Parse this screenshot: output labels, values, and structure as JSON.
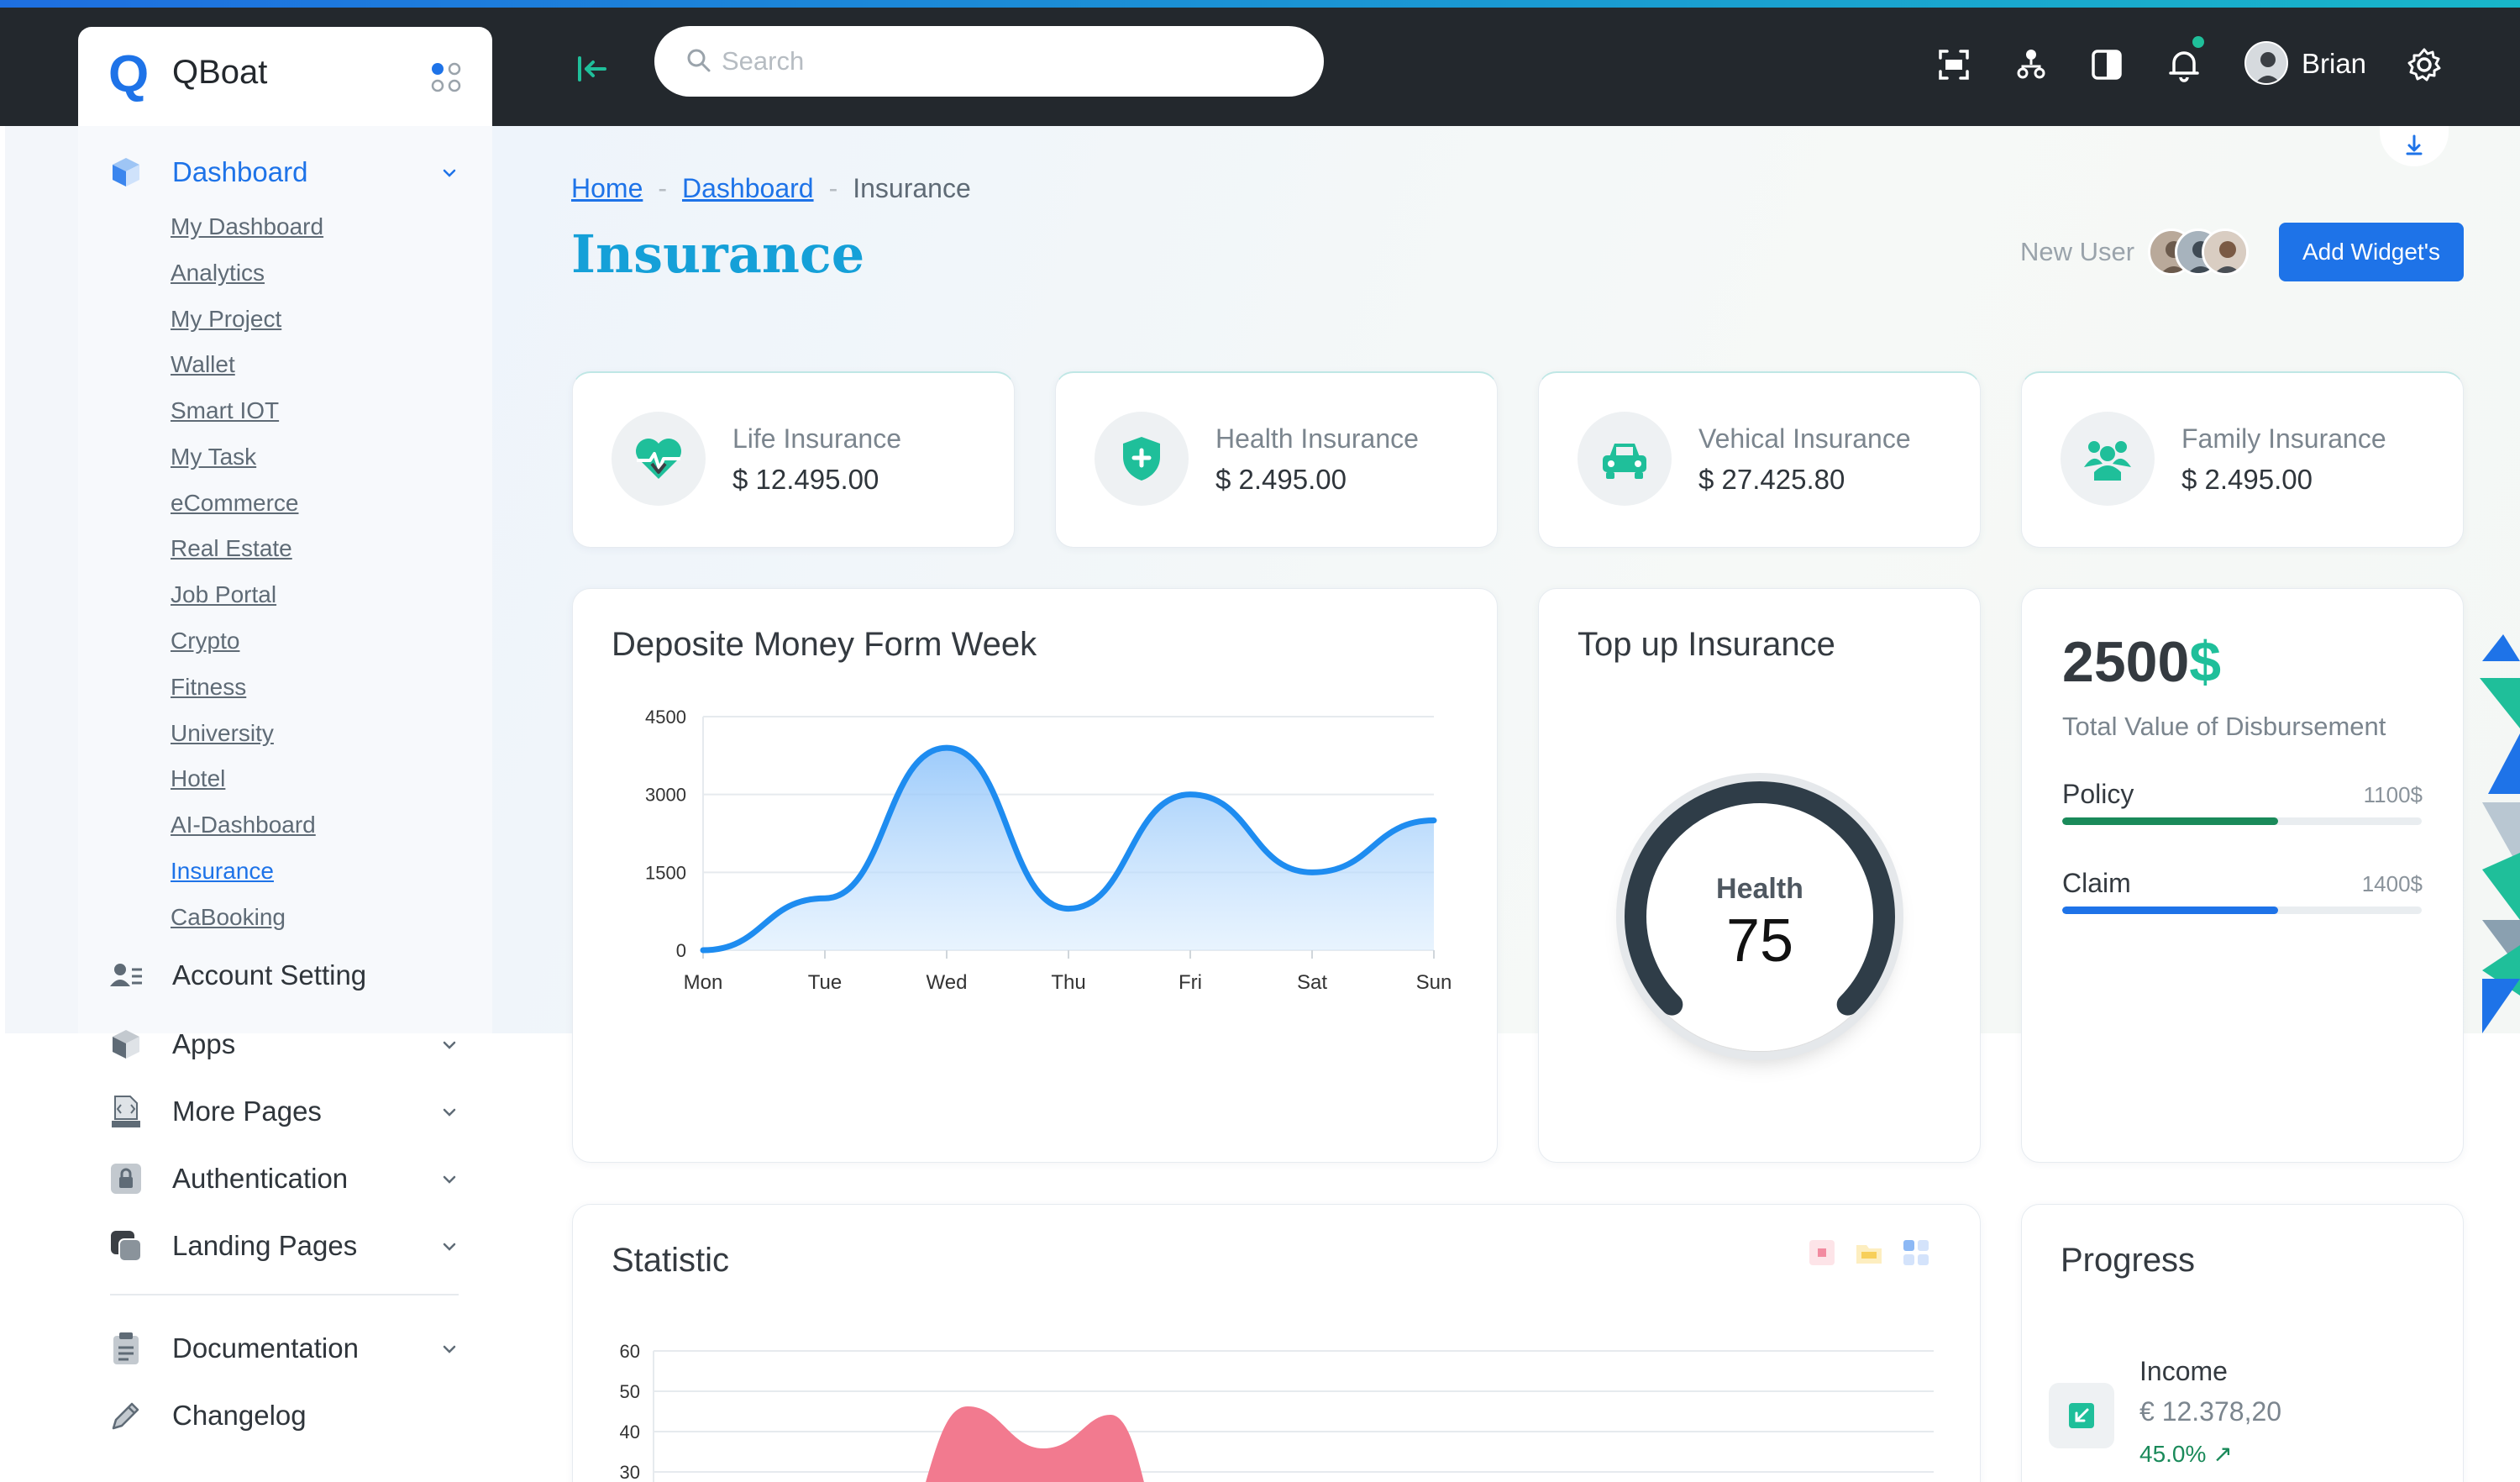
{
  "topbar": {
    "search_placeholder": "Search",
    "user_name": "Brian",
    "icons": [
      "collapse-icon",
      "fullscreen-icon",
      "sitemap-icon",
      "layout-toggle-icon",
      "bell-icon",
      "settings-icon"
    ]
  },
  "sidebar": {
    "logo": "QBoat",
    "logo_mark": "Q",
    "dashboard": {
      "label": "Dashboard",
      "items": [
        "My Dashboard",
        "Analytics",
        "My Project",
        "Wallet",
        "Smart IOT",
        "My Task",
        "eCommerce",
        "Real Estate",
        "Job Portal",
        "Crypto",
        "Fitness",
        "University",
        "Hotel",
        "AI-Dashboard",
        "Insurance",
        "CaBooking"
      ],
      "active_item": "Insurance"
    },
    "sections": [
      {
        "label": "Account Setting",
        "icon": "user-cog-icon",
        "expandable": false
      },
      {
        "label": "Apps",
        "icon": "box-icon",
        "expandable": true
      },
      {
        "label": "More Pages",
        "icon": "html-file-icon",
        "expandable": true
      },
      {
        "label": "Authentication",
        "icon": "lock-icon",
        "expandable": true
      },
      {
        "label": "Landing Pages",
        "icon": "pages-icon",
        "expandable": true
      },
      {
        "label": "Documentation",
        "icon": "clipboard-icon",
        "expandable": true
      },
      {
        "label": "Changelog",
        "icon": "pencil-icon",
        "expandable": false
      }
    ]
  },
  "breadcrumb": {
    "home": "Home",
    "dashboard": "Dashboard",
    "current": "Insurance",
    "separator": "-"
  },
  "page": {
    "title": "Insurance",
    "new_user_label": "New User",
    "add_widget_label": "Add Widget's"
  },
  "insurance_cards": [
    {
      "label": "Life Insurance",
      "value": "$ 12.495.00",
      "icon": "heart-pulse-icon"
    },
    {
      "label": "Health Insurance",
      "value": "$ 2.495.00",
      "icon": "shield-plus-icon"
    },
    {
      "label": "Vehical Insurance",
      "value": "$ 27.425.80",
      "icon": "car-icon"
    },
    {
      "label": "Family Insurance",
      "value": "$ 2.495.00",
      "icon": "family-icon"
    }
  ],
  "deposit": {
    "title": "Deposite Money Form Week"
  },
  "topup": {
    "title": "Top up Insurance",
    "gauge_label": "Health",
    "gauge_value": "75",
    "gauge_percent": 75
  },
  "disbursement": {
    "amount": "2500",
    "currency": "$",
    "label": "Total Value of Disbursement",
    "rows": [
      {
        "label": "Policy",
        "value": "1100$",
        "percent": 60,
        "color": "#1a8a5a"
      },
      {
        "label": "Claim",
        "value": "1400$",
        "percent": 60,
        "color": "#1e73e8"
      }
    ]
  },
  "statistic": {
    "title": "Statistic",
    "y_ticks": [
      "60",
      "50",
      "40",
      "30"
    ]
  },
  "progress": {
    "title": "Progress",
    "income_label": "Income",
    "income_value": "€ 12.378,20",
    "income_change": "45.0%",
    "change_arrow": "↗"
  },
  "chart_data": {
    "type": "area",
    "categories": [
      "Mon",
      "Tue",
      "Wed",
      "Thu",
      "Fri",
      "Sat",
      "Sun"
    ],
    "series": [
      {
        "values": [
          0,
          1000,
          3900,
          800,
          3000,
          1500,
          2500
        ]
      }
    ],
    "ylim": [
      0,
      4500
    ],
    "y_ticks": [
      0,
      1500,
      3000,
      4500
    ],
    "grid": true,
    "color": "#1e8cf0"
  },
  "colors": {
    "accent": "#1e73e8",
    "teal": "#1fbf9a",
    "title": "#15a0d8",
    "topbar": "#23282d"
  }
}
